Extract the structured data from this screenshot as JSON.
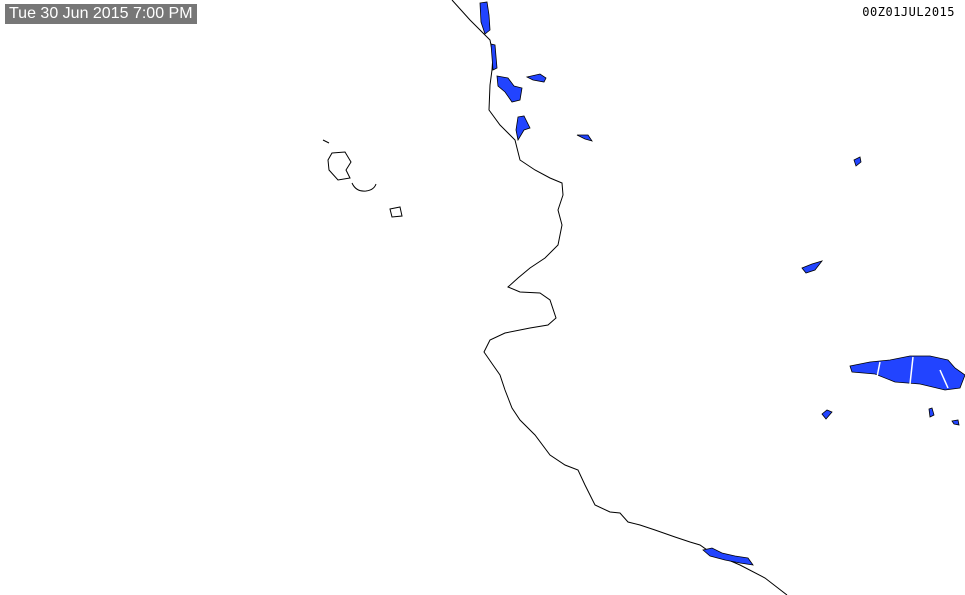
{
  "header": {
    "local_time": "Tue 30 Jun 2015 7:00 PM",
    "valid_time": "00Z01JUL2015"
  },
  "colors": {
    "coastline": "#000000",
    "water_fill": "#2244ff",
    "label_background": "#777777",
    "background": "#ffffff"
  }
}
